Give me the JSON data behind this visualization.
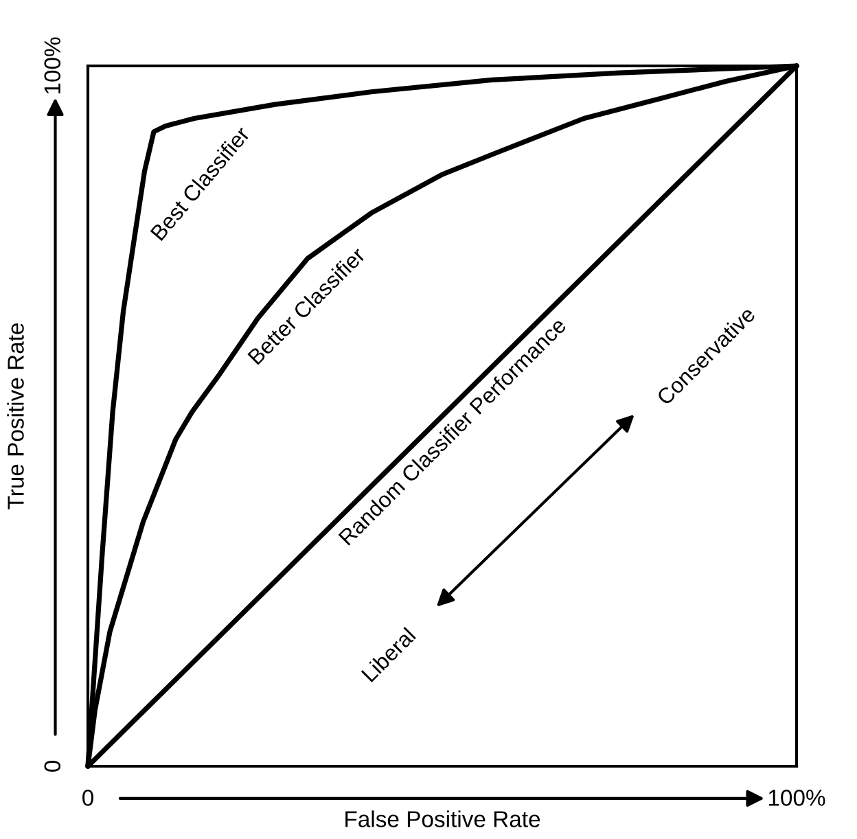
{
  "chart_data": {
    "type": "line",
    "xlabel": "False Positive Rate",
    "ylabel": "True Positive Rate",
    "xlim": [
      0,
      100
    ],
    "ylim": [
      0,
      100
    ],
    "xticks": [
      0,
      {
        "value": 100,
        "label": "100%"
      }
    ],
    "yticks": [
      0,
      {
        "value": 100,
        "label": "100%"
      }
    ],
    "marker": "none",
    "line_style": "solid",
    "series": [
      {
        "name": "Best Classifier",
        "color": "#000000",
        "x": [
          0,
          2,
          3.5,
          5,
          6.6,
          8,
          9.3,
          10.9,
          15,
          26.4,
          40,
          57,
          75,
          100
        ],
        "values": [
          0,
          30,
          50.6,
          65,
          75.7,
          85,
          90.6,
          91.4,
          92.5,
          94.5,
          96.3,
          98,
          99,
          100
        ]
      },
      {
        "name": "Better Classifier",
        "color": "#000000",
        "x": [
          0,
          1,
          3.1,
          7.8,
          12.4,
          14.7,
          18.6,
          24,
          31,
          40,
          50,
          57.4,
          70,
          80.6,
          90,
          100
        ],
        "values": [
          0,
          8,
          19.2,
          34.9,
          46.7,
          50.6,
          56,
          64,
          72.5,
          79,
          84.5,
          87.5,
          92.5,
          95.3,
          97.8,
          100
        ]
      },
      {
        "name": "Random Classifier Performance",
        "color": "#000000",
        "x": [
          0,
          100
        ],
        "values": [
          0,
          100
        ]
      }
    ],
    "annotations": [
      "Conservative",
      "Liberal"
    ]
  }
}
